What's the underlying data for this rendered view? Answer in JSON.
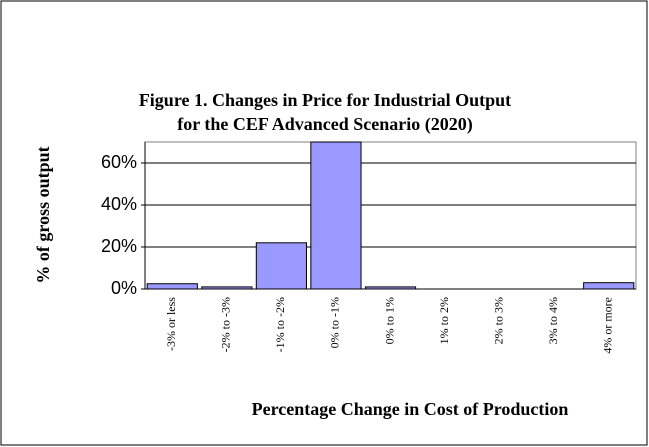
{
  "chart_data": {
    "type": "bar",
    "title": [
      "Figure 1.  Changes in Price for Industrial Output",
      "for the CEF Advanced Scenario (2020)"
    ],
    "x_label": "Percentage Change in Cost of Production",
    "y_label": "% of gross output",
    "categories": [
      "-3% or less",
      "-2% to -3%",
      "-1% to -2%",
      "0% to -1%",
      "0% to 1%",
      "1% to 2%",
      "2% to 3%",
      "3% to 4%",
      "4% or more"
    ],
    "values": [
      2.5,
      1,
      22,
      70,
      1,
      0,
      0,
      0,
      3
    ],
    "color": "#9999ff",
    "ylim": [
      0,
      70
    ],
    "yticks": [
      {
        "value": 0,
        "label": "0%"
      },
      {
        "value": 20,
        "label": "20%"
      },
      {
        "value": 40,
        "label": "40%"
      },
      {
        "value": 60,
        "label": "60%"
      }
    ],
    "grid": true
  }
}
